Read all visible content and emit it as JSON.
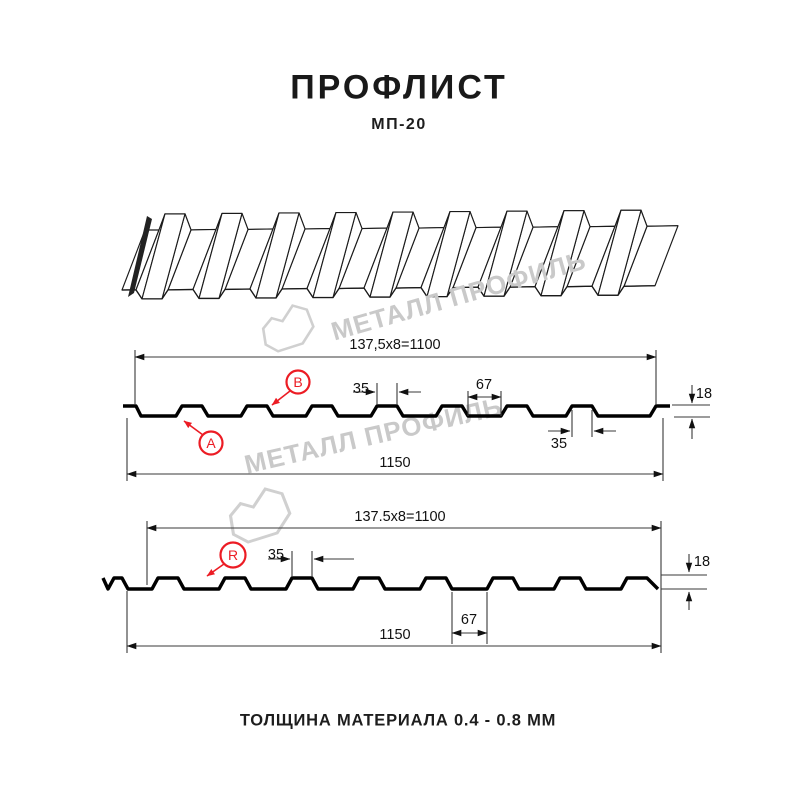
{
  "header": {
    "title": "ПРОФЛИСТ",
    "subtitle": "МП-20"
  },
  "footer": {
    "caption": "ТОЛЩИНА МАТЕРИАЛА 0.4 - 0.8 ММ"
  },
  "watermark": {
    "brand": "МЕТАЛЛ ПРОФИЛЬ"
  },
  "section_top": {
    "pitch_formula": "137,5x8=1100",
    "overall_width": "1150",
    "rib_top_width": "35",
    "valley_width": "67",
    "profile_height": "18",
    "rib_top_width_bottom": "35",
    "label_a": "A",
    "label_b": "B"
  },
  "section_bottom": {
    "pitch_formula": "137.5x8=1100",
    "overall_width": "1150",
    "rib_top_width": "35",
    "valley_width": "67",
    "profile_height": "18",
    "label_r": "R"
  },
  "colors": {
    "accent_red": "#ec1c24",
    "line": "#1a1a1a",
    "watermark": "#c9c9c9"
  }
}
